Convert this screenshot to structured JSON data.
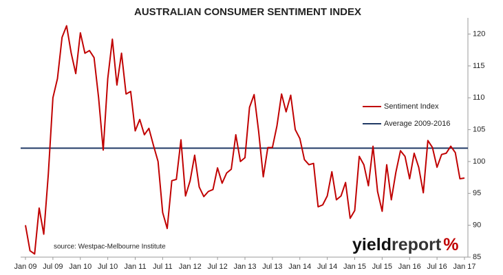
{
  "chart_data": {
    "type": "line",
    "title": "AUSTRALIAN CONSUMER SENTIMENT INDEX",
    "categories": [
      "Jan 09",
      null,
      null,
      null,
      null,
      null,
      "Jul 09",
      null,
      null,
      null,
      null,
      null,
      "Jan 10",
      null,
      null,
      null,
      null,
      null,
      "Jul 10",
      null,
      null,
      null,
      null,
      null,
      "Jan 11",
      null,
      null,
      null,
      null,
      null,
      "Jul 11",
      null,
      null,
      null,
      null,
      null,
      "Jan 12",
      null,
      null,
      null,
      null,
      null,
      "Jul 12",
      null,
      null,
      null,
      null,
      null,
      "Jan 13",
      null,
      null,
      null,
      null,
      null,
      "Jul 13",
      null,
      null,
      null,
      null,
      null,
      "Jan 14",
      null,
      null,
      null,
      null,
      null,
      "Jul 14",
      null,
      null,
      null,
      null,
      null,
      "Jan 15",
      null,
      null,
      null,
      null,
      null,
      "Jul 15",
      null,
      null,
      null,
      null,
      null,
      "Jan 16",
      null,
      null,
      null,
      null,
      null,
      "Jul 16",
      null,
      null,
      null,
      null,
      null,
      "Jan 17"
    ],
    "series": [
      {
        "name": "Sentiment Index",
        "color": "#c00000",
        "values": [
          90,
          86,
          85.5,
          92.7,
          88.6,
          98,
          110,
          113,
          119.5,
          121.3,
          117,
          113.8,
          120.2,
          117,
          117.4,
          116.3,
          110,
          101.8,
          113,
          119.2,
          112,
          117,
          110.6,
          111,
          104.8,
          106.6,
          104.2,
          105.2,
          102.5,
          100,
          92,
          89.5,
          97,
          97.2,
          103.4,
          94.6,
          97,
          101,
          96,
          94.5,
          95.3,
          95.6,
          99,
          96.6,
          98.2,
          98.8,
          104.2,
          100,
          100.6,
          108.5,
          110.5,
          104.7,
          97.6,
          102.2,
          102.2,
          105.6,
          110.6,
          107.8,
          110.4,
          105,
          103.6,
          100.3,
          99.5,
          99.7,
          92.9,
          93.2,
          94.6,
          98.4,
          94,
          94.6,
          96.7,
          91.1,
          92.3,
          100.8,
          99.5,
          96.2,
          102.4,
          95.3,
          92.2,
          99.5,
          94,
          98.3,
          101.7,
          100.8,
          97.3,
          101.3,
          99.1,
          95.1,
          103.3,
          102.2,
          99.1,
          101.1,
          101.3,
          102.4,
          101.4,
          97.3,
          97.4
        ]
      }
    ],
    "reference_lines": [
      {
        "name": "Average 2009-2016",
        "color": "#1f3864",
        "value": 102.1
      }
    ],
    "ylim": [
      85,
      122
    ],
    "yticks": [
      85,
      90,
      95,
      100,
      105,
      110,
      115,
      120
    ],
    "source": "source: Westpac-Melbourne Institute",
    "logo": {
      "word1": "yield",
      "word2": "report",
      "symbol": "%"
    }
  }
}
